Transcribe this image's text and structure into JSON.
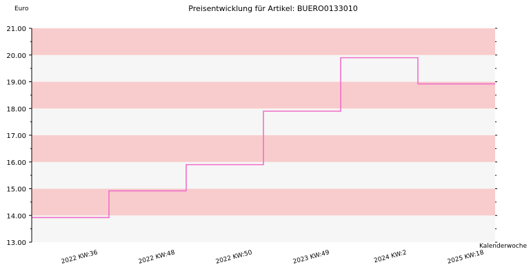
{
  "chart_data": {
    "type": "line",
    "step": true,
    "title": "Preisentwicklung für Artikel: BUERO0133010",
    "ylabel": "Euro",
    "xlabel": "Kalenderwoche",
    "ylim": [
      13,
      21
    ],
    "yticks": [
      "13.00",
      "14.00",
      "15.00",
      "16.00",
      "17.00",
      "18.00",
      "19.00",
      "20.00",
      "21.00"
    ],
    "categories": [
      "2022 KW:36",
      "2022 KW:48",
      "2022 KW:50",
      "2023 KW:49",
      "2024 KW:2",
      "2025 KW:18"
    ],
    "series": [
      {
        "values": [
          13.92,
          14.92,
          15.9,
          17.9,
          19.9,
          18.92
        ]
      }
    ],
    "grid": true,
    "colors": {
      "line": "#f06ec8",
      "band_dark": "#f8cccc",
      "band_light": "#f6f6f6",
      "axis": "#000000"
    }
  }
}
